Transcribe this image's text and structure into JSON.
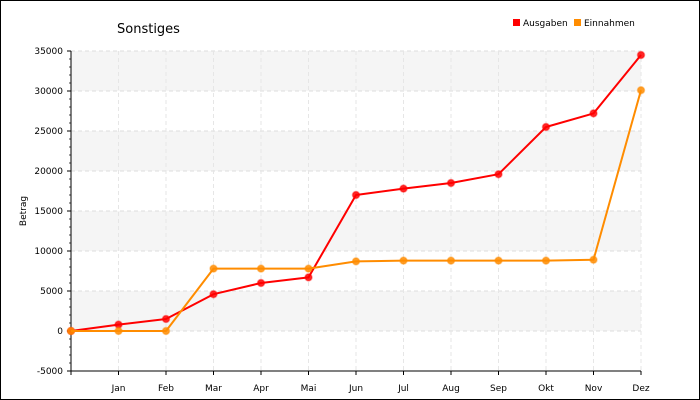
{
  "chart_data": {
    "type": "line",
    "title": "Sonstiges",
    "ylabel": "Betrag",
    "xlabel": "",
    "categories": [
      "",
      "Jan",
      "Feb",
      "Mar",
      "Apr",
      "Mai",
      "Jun",
      "Jul",
      "Aug",
      "Sep",
      "Okt",
      "Nov",
      "Dez"
    ],
    "ylim": [
      -5000,
      35000
    ],
    "yticks": [
      -5000,
      0,
      5000,
      10000,
      15000,
      20000,
      25000,
      30000,
      35000
    ],
    "grid": true,
    "legend_position": "top-right",
    "series": [
      {
        "name": "Ausgaben",
        "color": "#ff0000",
        "values": [
          0,
          800,
          1500,
          4600,
          6000,
          6700,
          17000,
          17800,
          18500,
          19600,
          25500,
          27200,
          34500
        ]
      },
      {
        "name": "Einnahmen",
        "color": "#ff8c00",
        "values": [
          0,
          0,
          0,
          7800,
          7800,
          7800,
          8700,
          8800,
          8800,
          8800,
          8800,
          8900,
          30100
        ]
      }
    ]
  }
}
